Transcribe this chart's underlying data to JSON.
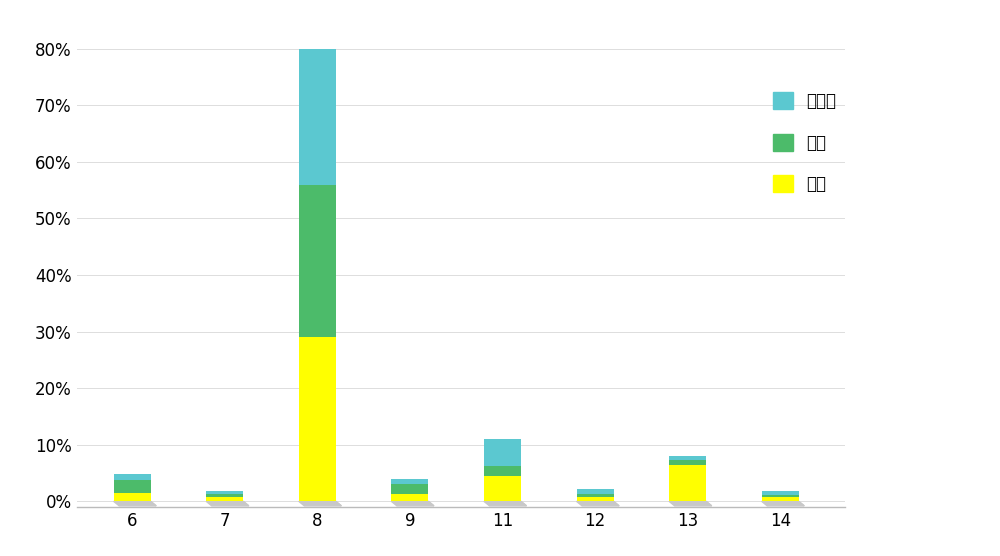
{
  "categories": [
    "6",
    "7",
    "8",
    "9",
    "11",
    "12",
    "13",
    "14"
  ],
  "series": {
    "luotuo": [
      0.015,
      0.008,
      0.29,
      0.013,
      0.045,
      0.008,
      0.065,
      0.008
    ],
    "yangtuo": [
      0.022,
      0.005,
      0.27,
      0.018,
      0.018,
      0.005,
      0.008,
      0.004
    ],
    "meizhoutuo": [
      0.012,
      0.006,
      0.24,
      0.008,
      0.048,
      0.008,
      0.008,
      0.006
    ]
  },
  "colors": {
    "luotuo": "#FFFF00",
    "yangtuo": "#4CBB6A",
    "meizhoutuo": "#5BC8D0"
  },
  "legend_labels": [
    "美洲驼",
    "羊驼",
    "骆驼"
  ],
  "ylim_max": 0.84,
  "ytick_values": [
    0.0,
    0.1,
    0.2,
    0.3,
    0.4,
    0.5,
    0.6,
    0.7,
    0.8
  ],
  "ytick_labels": [
    "0%",
    "10%",
    "20%",
    "30%",
    "40%",
    "50%",
    "60%",
    "70%",
    "80%"
  ],
  "bar_width": 0.4,
  "background_color": "#FFFFFF",
  "legend_fontsize": 12,
  "tick_fontsize": 12,
  "platform_color": "#CCCCCC",
  "spine_color": "#BBBBBB"
}
